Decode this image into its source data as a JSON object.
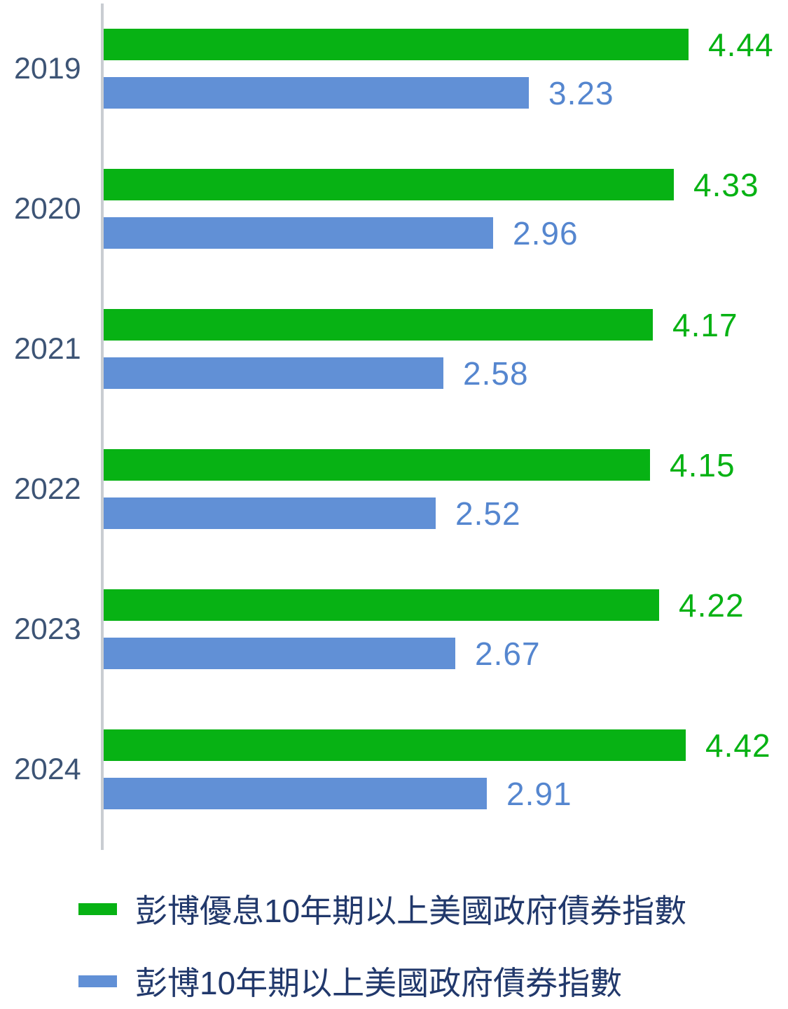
{
  "chart_data": {
    "type": "bar",
    "orientation": "horizontal",
    "title": "",
    "xlabel": "",
    "ylabel": "",
    "categories": [
      "2019",
      "2020",
      "2021",
      "2022",
      "2023",
      "2024"
    ],
    "series": [
      {
        "name": "彭博優息10年期以上美國政府債券指數",
        "color": "#07b214",
        "values": [
          4.44,
          4.33,
          4.17,
          4.15,
          4.22,
          4.42
        ]
      },
      {
        "name": "彭博10年期以上美國政府債券指數",
        "color": "#6190d6",
        "values": [
          3.23,
          2.96,
          2.58,
          2.52,
          2.67,
          2.91
        ]
      }
    ],
    "xlim": [
      0,
      5.2
    ],
    "grid": false,
    "value_labels": true,
    "legend_position": "bottom"
  },
  "colors": {
    "green_bar": "#07b214",
    "green_value_label": "#07b214",
    "blue_bar": "#6190d6",
    "blue_value_label": "#5586cf",
    "year_label": "#3d5475",
    "legend_text": "#21386b",
    "axis_line": "#c9cdd2",
    "background": "#ffffff"
  }
}
